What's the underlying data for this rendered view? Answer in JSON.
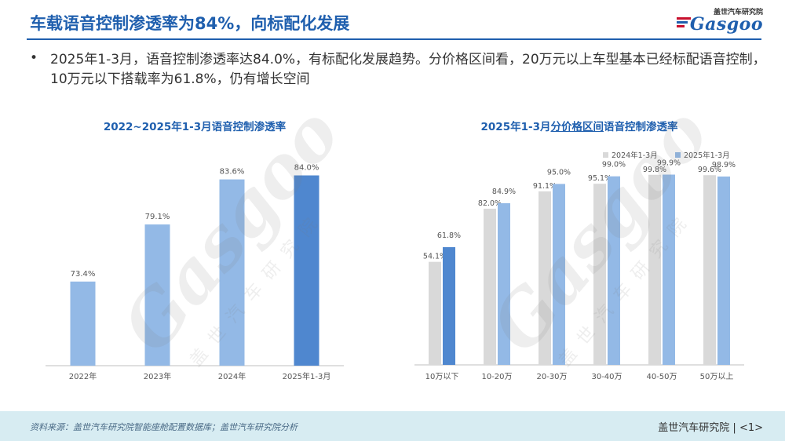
{
  "header": {
    "title": "车载语音控制渗透率为84%，向标配化发展",
    "logo_cn": "盖世汽车研究院",
    "logo_en": "Gasgoo"
  },
  "summary": {
    "bullet": "•",
    "text": "2025年1-3月，语音控制渗透率达84.0%，有标配化发展趋势。分价格区间看，20万元以上车型基本已经标配语音控制，10万元以下搭载率为61.8%，仍有增长空间"
  },
  "watermark": {
    "logo": "Gasgoo",
    "cn": "盖世汽车研究院"
  },
  "chart_data": [
    {
      "type": "bar",
      "title": "2022~2025年1-3月语音控制渗透率",
      "categories": [
        "2022年",
        "2023年",
        "2024年",
        "2025年1-3月"
      ],
      "values": [
        73.4,
        79.1,
        83.6,
        84.0
      ],
      "value_labels": [
        "73.4%",
        "79.1%",
        "83.6%",
        "84.0%"
      ],
      "ylim": [
        65,
        86
      ],
      "grid": false,
      "colors": [
        "#93b9e6",
        "#93b9e6",
        "#93b9e6",
        "#4f87cf"
      ]
    },
    {
      "type": "bar",
      "title_prefix": "2025年1-3月",
      "title_underlined": "分价格区间",
      "title_suffix": "语音控制渗透率",
      "categories": [
        "10万以下",
        "10-20万",
        "20-30万",
        "30-40万",
        "40-50万",
        "50万以上"
      ],
      "series": [
        {
          "name": "2024年1-3月",
          "values": [
            54.1,
            82.0,
            91.1,
            95.1,
            99.8,
            99.6
          ],
          "value_labels": [
            "54.1%",
            "82.0%",
            "91.1%",
            "95.1%",
            "99.8%",
            "99.6%"
          ],
          "color": "#d9d9d9"
        },
        {
          "name": "2025年1-3月",
          "values": [
            61.8,
            84.9,
            95.0,
            99.0,
            99.9,
            98.9
          ],
          "value_labels": [
            "61.8%",
            "84.9%",
            "95.0%",
            "99.0%",
            "99.9%",
            "98.9%"
          ],
          "color": "#93b9e6",
          "highlight_color": "#4f87cf"
        }
      ],
      "ylim": [
        0,
        110
      ],
      "legend": "top-right",
      "grid": false
    }
  ],
  "footer": {
    "source": "资料来源：盖世汽车研究院智能座舱配置数据库；盖世汽车研究院分析",
    "brand": "盖世汽车研究院 | <1>"
  }
}
